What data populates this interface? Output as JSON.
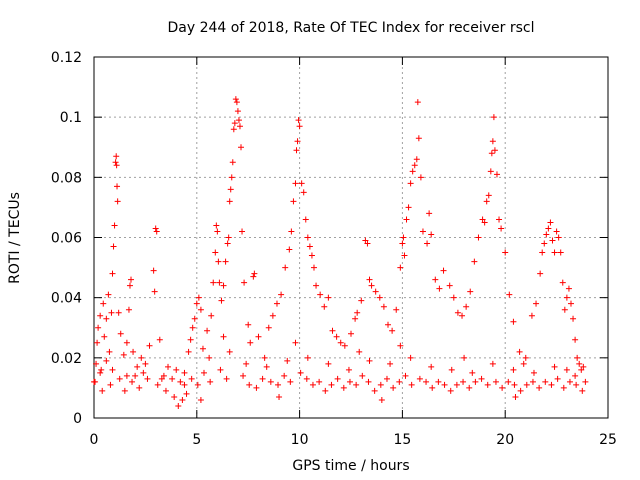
{
  "chart_data": {
    "type": "scatter",
    "title": "Day 244 of 2018, Rate Of TEC Index for receiver rscl",
    "xlabel": "GPS time / hours",
    "ylabel": "ROTI / TECUs",
    "xlim": [
      0,
      25
    ],
    "ylim": [
      0,
      0.12
    ],
    "x_ticks": [
      "0",
      "5",
      "10",
      "15",
      "20",
      "25"
    ],
    "y_ticks": [
      "0",
      "0.02",
      "0.04",
      "0.06",
      "0.08",
      "0.1",
      "0.12"
    ],
    "grid": true,
    "marker": "+",
    "color": "#ff0000",
    "series": [
      {
        "name": "ROTI",
        "points": [
          [
            0.0,
            0.012
          ],
          [
            0.1,
            0.018
          ],
          [
            0.15,
            0.025
          ],
          [
            0.2,
            0.03
          ],
          [
            0.3,
            0.034
          ],
          [
            0.35,
            0.016
          ],
          [
            0.45,
            0.038
          ],
          [
            0.5,
            0.027
          ],
          [
            0.6,
            0.033
          ],
          [
            0.7,
            0.041
          ],
          [
            0.75,
            0.022
          ],
          [
            0.85,
            0.035
          ],
          [
            0.9,
            0.048
          ],
          [
            0.95,
            0.057
          ],
          [
            1.0,
            0.064
          ],
          [
            1.05,
            0.085
          ],
          [
            1.08,
            0.087
          ],
          [
            1.1,
            0.084
          ],
          [
            1.12,
            0.077
          ],
          [
            1.15,
            0.072
          ],
          [
            1.2,
            0.035
          ],
          [
            1.3,
            0.028
          ],
          [
            1.45,
            0.021
          ],
          [
            1.6,
            0.025
          ],
          [
            1.7,
            0.036
          ],
          [
            1.75,
            0.044
          ],
          [
            1.8,
            0.046
          ],
          [
            1.9,
            0.022
          ],
          [
            2.1,
            0.017
          ],
          [
            2.3,
            0.02
          ],
          [
            2.5,
            0.018
          ],
          [
            2.7,
            0.024
          ],
          [
            2.9,
            0.049
          ],
          [
            2.95,
            0.042
          ],
          [
            3.0,
            0.063
          ],
          [
            3.05,
            0.062
          ],
          [
            3.2,
            0.026
          ],
          [
            3.4,
            0.014
          ],
          [
            3.6,
            0.017
          ],
          [
            3.8,
            0.013
          ],
          [
            4.0,
            0.016
          ],
          [
            4.2,
            0.012
          ],
          [
            4.4,
            0.011
          ],
          [
            4.6,
            0.022
          ],
          [
            4.7,
            0.026
          ],
          [
            4.8,
            0.03
          ],
          [
            4.9,
            0.033
          ],
          [
            5.0,
            0.038
          ],
          [
            5.1,
            0.04
          ],
          [
            5.2,
            0.036
          ],
          [
            5.3,
            0.023
          ],
          [
            5.5,
            0.029
          ],
          [
            5.7,
            0.034
          ],
          [
            5.8,
            0.045
          ],
          [
            5.9,
            0.055
          ],
          [
            5.95,
            0.064
          ],
          [
            6.0,
            0.062
          ],
          [
            6.05,
            0.052
          ],
          [
            6.1,
            0.045
          ],
          [
            6.2,
            0.039
          ],
          [
            6.3,
            0.044
          ],
          [
            6.4,
            0.052
          ],
          [
            6.5,
            0.058
          ],
          [
            6.55,
            0.06
          ],
          [
            6.6,
            0.072
          ],
          [
            6.65,
            0.076
          ],
          [
            6.7,
            0.08
          ],
          [
            6.75,
            0.085
          ],
          [
            6.8,
            0.096
          ],
          [
            6.85,
            0.098
          ],
          [
            6.9,
            0.106
          ],
          [
            6.95,
            0.105
          ],
          [
            7.0,
            0.102
          ],
          [
            7.05,
            0.099
          ],
          [
            7.1,
            0.097
          ],
          [
            7.15,
            0.09
          ],
          [
            7.2,
            0.062
          ],
          [
            7.3,
            0.045
          ],
          [
            7.5,
            0.031
          ],
          [
            7.6,
            0.025
          ],
          [
            7.75,
            0.047
          ],
          [
            7.8,
            0.048
          ],
          [
            8.0,
            0.027
          ],
          [
            8.3,
            0.02
          ],
          [
            8.5,
            0.03
          ],
          [
            8.7,
            0.034
          ],
          [
            8.9,
            0.038
          ],
          [
            9.1,
            0.041
          ],
          [
            9.3,
            0.05
          ],
          [
            9.5,
            0.056
          ],
          [
            9.6,
            0.062
          ],
          [
            9.7,
            0.072
          ],
          [
            9.8,
            0.078
          ],
          [
            9.85,
            0.089
          ],
          [
            9.9,
            0.092
          ],
          [
            9.95,
            0.099
          ],
          [
            10.0,
            0.097
          ],
          [
            10.1,
            0.078
          ],
          [
            10.2,
            0.075
          ],
          [
            10.3,
            0.066
          ],
          [
            10.4,
            0.06
          ],
          [
            10.5,
            0.057
          ],
          [
            10.6,
            0.054
          ],
          [
            10.7,
            0.05
          ],
          [
            10.8,
            0.044
          ],
          [
            11.0,
            0.041
          ],
          [
            11.2,
            0.037
          ],
          [
            11.4,
            0.04
          ],
          [
            11.6,
            0.029
          ],
          [
            11.8,
            0.027
          ],
          [
            12.0,
            0.025
          ],
          [
            12.2,
            0.024
          ],
          [
            12.5,
            0.028
          ],
          [
            12.7,
            0.033
          ],
          [
            12.8,
            0.035
          ],
          [
            13.0,
            0.039
          ],
          [
            13.2,
            0.059
          ],
          [
            13.3,
            0.058
          ],
          [
            13.4,
            0.046
          ],
          [
            13.5,
            0.044
          ],
          [
            13.7,
            0.042
          ],
          [
            13.9,
            0.04
          ],
          [
            14.1,
            0.037
          ],
          [
            14.3,
            0.031
          ],
          [
            14.5,
            0.029
          ],
          [
            14.7,
            0.036
          ],
          [
            14.9,
            0.05
          ],
          [
            15.0,
            0.058
          ],
          [
            15.05,
            0.06
          ],
          [
            15.1,
            0.054
          ],
          [
            15.2,
            0.066
          ],
          [
            15.3,
            0.07
          ],
          [
            15.4,
            0.078
          ],
          [
            15.5,
            0.082
          ],
          [
            15.6,
            0.084
          ],
          [
            15.7,
            0.086
          ],
          [
            15.75,
            0.105
          ],
          [
            15.8,
            0.093
          ],
          [
            15.9,
            0.08
          ],
          [
            16.0,
            0.062
          ],
          [
            16.2,
            0.058
          ],
          [
            16.3,
            0.068
          ],
          [
            16.4,
            0.061
          ],
          [
            16.6,
            0.046
          ],
          [
            16.8,
            0.043
          ],
          [
            17.0,
            0.049
          ],
          [
            17.3,
            0.044
          ],
          [
            17.5,
            0.04
          ],
          [
            17.7,
            0.035
          ],
          [
            17.9,
            0.034
          ],
          [
            18.1,
            0.037
          ],
          [
            18.3,
            0.042
          ],
          [
            18.5,
            0.052
          ],
          [
            18.7,
            0.06
          ],
          [
            18.9,
            0.066
          ],
          [
            19.0,
            0.065
          ],
          [
            19.1,
            0.072
          ],
          [
            19.2,
            0.074
          ],
          [
            19.3,
            0.082
          ],
          [
            19.35,
            0.088
          ],
          [
            19.4,
            0.092
          ],
          [
            19.45,
            0.1
          ],
          [
            19.5,
            0.089
          ],
          [
            19.6,
            0.081
          ],
          [
            19.7,
            0.066
          ],
          [
            19.8,
            0.063
          ],
          [
            20.0,
            0.055
          ],
          [
            20.2,
            0.041
          ],
          [
            20.4,
            0.032
          ],
          [
            20.7,
            0.022
          ],
          [
            21.0,
            0.02
          ],
          [
            21.3,
            0.034
          ],
          [
            21.5,
            0.038
          ],
          [
            21.7,
            0.048
          ],
          [
            21.8,
            0.055
          ],
          [
            21.9,
            0.058
          ],
          [
            22.0,
            0.061
          ],
          [
            22.1,
            0.063
          ],
          [
            22.2,
            0.065
          ],
          [
            22.3,
            0.059
          ],
          [
            22.4,
            0.055
          ],
          [
            22.5,
            0.062
          ],
          [
            22.6,
            0.06
          ],
          [
            22.7,
            0.055
          ],
          [
            22.8,
            0.045
          ],
          [
            22.9,
            0.036
          ],
          [
            23.0,
            0.04
          ],
          [
            23.1,
            0.043
          ],
          [
            23.2,
            0.038
          ],
          [
            23.3,
            0.033
          ],
          [
            23.4,
            0.026
          ],
          [
            23.5,
            0.02
          ],
          [
            23.6,
            0.018
          ],
          [
            23.7,
            0.016
          ],
          [
            23.8,
            0.017
          ],
          [
            23.9,
            0.012
          ],
          [
            0.05,
            0.012
          ],
          [
            0.4,
            0.009
          ],
          [
            0.8,
            0.011
          ],
          [
            1.25,
            0.013
          ],
          [
            1.5,
            0.009
          ],
          [
            1.85,
            0.012
          ],
          [
            2.2,
            0.01
          ],
          [
            2.6,
            0.013
          ],
          [
            3.1,
            0.011
          ],
          [
            3.5,
            0.009
          ],
          [
            3.9,
            0.007
          ],
          [
            4.1,
            0.004
          ],
          [
            4.3,
            0.006
          ],
          [
            4.5,
            0.008
          ],
          [
            4.75,
            0.013
          ],
          [
            5.05,
            0.011
          ],
          [
            5.35,
            0.015
          ],
          [
            5.65,
            0.012
          ],
          [
            6.15,
            0.016
          ],
          [
            6.45,
            0.013
          ],
          [
            7.25,
            0.014
          ],
          [
            7.55,
            0.011
          ],
          [
            7.9,
            0.01
          ],
          [
            8.2,
            0.013
          ],
          [
            8.6,
            0.012
          ],
          [
            8.95,
            0.011
          ],
          [
            9.25,
            0.014
          ],
          [
            9.55,
            0.012
          ],
          [
            10.05,
            0.015
          ],
          [
            10.35,
            0.013
          ],
          [
            10.65,
            0.011
          ],
          [
            10.95,
            0.012
          ],
          [
            11.25,
            0.009
          ],
          [
            11.55,
            0.011
          ],
          [
            11.85,
            0.013
          ],
          [
            12.15,
            0.01
          ],
          [
            12.45,
            0.012
          ],
          [
            12.75,
            0.011
          ],
          [
            13.05,
            0.014
          ],
          [
            13.35,
            0.012
          ],
          [
            13.65,
            0.009
          ],
          [
            13.95,
            0.011
          ],
          [
            14.25,
            0.013
          ],
          [
            14.55,
            0.01
          ],
          [
            14.85,
            0.012
          ],
          [
            15.15,
            0.014
          ],
          [
            15.45,
            0.011
          ],
          [
            15.85,
            0.013
          ],
          [
            16.15,
            0.012
          ],
          [
            16.45,
            0.01
          ],
          [
            16.75,
            0.012
          ],
          [
            17.05,
            0.011
          ],
          [
            17.35,
            0.009
          ],
          [
            17.65,
            0.011
          ],
          [
            17.95,
            0.012
          ],
          [
            18.25,
            0.01
          ],
          [
            18.55,
            0.012
          ],
          [
            18.85,
            0.013
          ],
          [
            19.15,
            0.011
          ],
          [
            19.55,
            0.012
          ],
          [
            19.85,
            0.01
          ],
          [
            20.15,
            0.012
          ],
          [
            20.45,
            0.011
          ],
          [
            20.75,
            0.009
          ],
          [
            21.05,
            0.011
          ],
          [
            21.35,
            0.012
          ],
          [
            21.65,
            0.01
          ],
          [
            21.95,
            0.012
          ],
          [
            22.25,
            0.011
          ],
          [
            22.55,
            0.013
          ],
          [
            22.85,
            0.01
          ],
          [
            23.15,
            0.012
          ],
          [
            23.45,
            0.011
          ],
          [
            23.75,
            0.009
          ],
          [
            0.3,
            0.015
          ],
          [
            0.9,
            0.016
          ],
          [
            1.6,
            0.014
          ],
          [
            2.4,
            0.015
          ],
          [
            3.3,
            0.013
          ],
          [
            4.4,
            0.015
          ],
          [
            5.6,
            0.02
          ],
          [
            6.6,
            0.022
          ],
          [
            7.4,
            0.018
          ],
          [
            8.4,
            0.017
          ],
          [
            9.4,
            0.019
          ],
          [
            10.4,
            0.02
          ],
          [
            11.4,
            0.018
          ],
          [
            12.4,
            0.016
          ],
          [
            13.4,
            0.019
          ],
          [
            14.4,
            0.018
          ],
          [
            15.4,
            0.02
          ],
          [
            16.4,
            0.017
          ],
          [
            17.4,
            0.016
          ],
          [
            18.4,
            0.015
          ],
          [
            19.4,
            0.018
          ],
          [
            20.4,
            0.016
          ],
          [
            21.4,
            0.015
          ],
          [
            22.4,
            0.017
          ],
          [
            23.4,
            0.014
          ],
          [
            0.6,
            0.019
          ],
          [
            2.0,
            0.014
          ],
          [
            6.3,
            0.027
          ],
          [
            9.8,
            0.025
          ],
          [
            12.9,
            0.022
          ],
          [
            14.9,
            0.024
          ],
          [
            18.0,
            0.02
          ],
          [
            20.9,
            0.018
          ],
          [
            23.0,
            0.016
          ],
          [
            5.2,
            0.006
          ],
          [
            9.0,
            0.007
          ],
          [
            14.0,
            0.006
          ],
          [
            20.5,
            0.007
          ]
        ]
      }
    ]
  }
}
